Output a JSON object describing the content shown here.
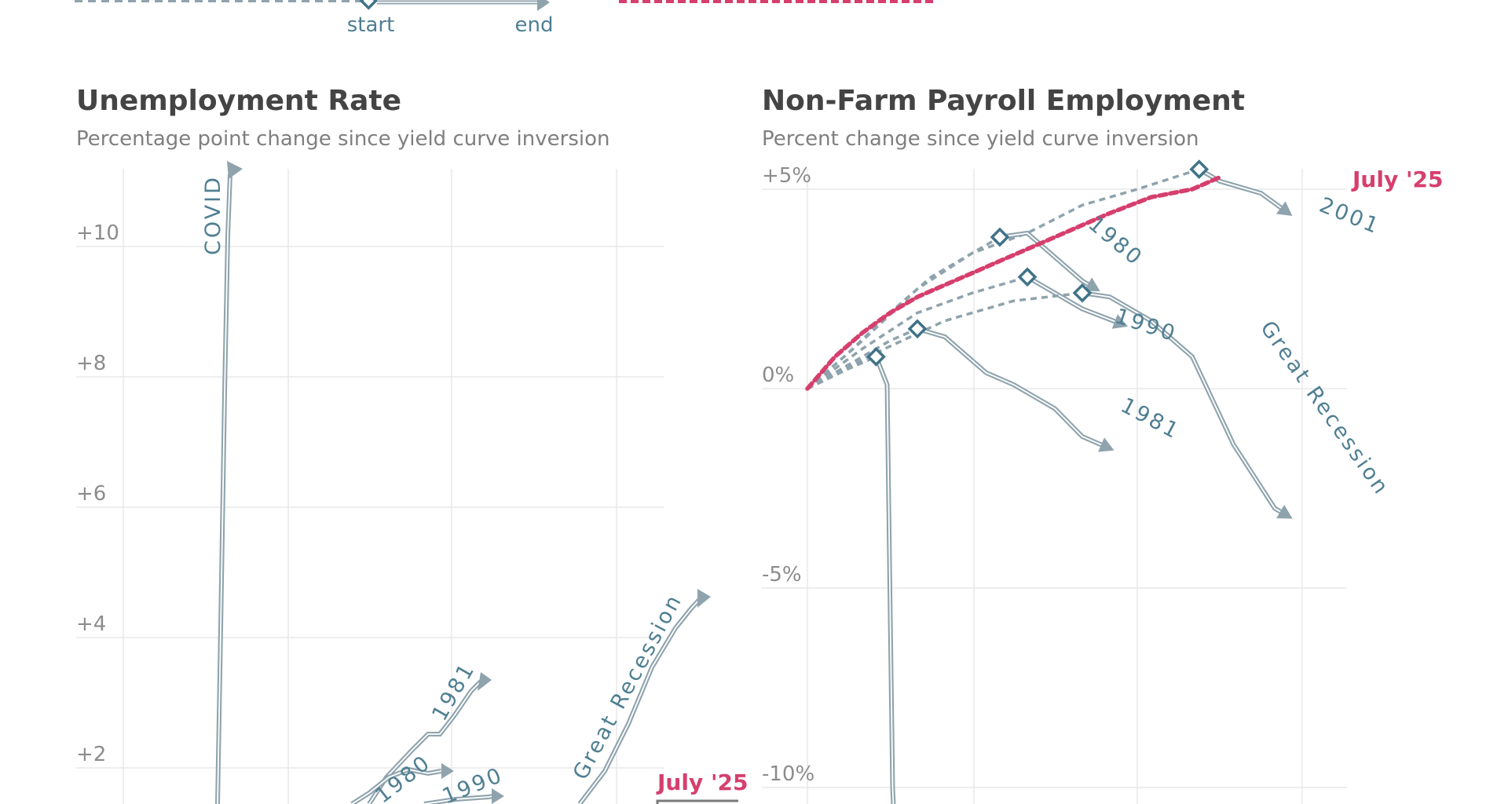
{
  "legend": {
    "start_label": "start",
    "end_label": "end",
    "colors": {
      "past": "#8fa3ad",
      "past_label": "#4f7f92",
      "current": "#d63f6d",
      "grid": "#e8e8e8"
    }
  },
  "chart_data": [
    {
      "type": "line",
      "title": "Unemployment Rate",
      "subtitle": "Percentage point change since yield curve inversion",
      "y_ticks": [
        "+10",
        "+8",
        "+6",
        "+4",
        "+2"
      ],
      "y_tick_values": [
        10,
        8,
        6,
        4,
        2
      ],
      "ylim": [
        1.4,
        11.2
      ],
      "grid": true,
      "series": [
        {
          "name": "COVID",
          "points": [
            [
              0.6,
              0
            ],
            [
              0.65,
              2
            ],
            [
              0.7,
              6
            ],
            [
              0.75,
              10
            ],
            [
              0.8,
              11.2
            ]
          ]
        },
        {
          "name": "1981",
          "points": [
            [
              1.6,
              1.0
            ],
            [
              2.0,
              1.5
            ],
            [
              2.4,
              1.9
            ],
            [
              2.6,
              2.3
            ],
            [
              2.9,
              2.7
            ],
            [
              3.2,
              3.3
            ]
          ]
        },
        {
          "name": "1980",
          "points": [
            [
              1.5,
              0.8
            ],
            [
              1.8,
              1.2
            ],
            [
              2.0,
              1.5
            ],
            [
              2.3,
              1.7
            ],
            [
              2.6,
              1.7
            ],
            [
              2.8,
              1.8
            ]
          ]
        },
        {
          "name": "1990",
          "points": [
            [
              1.6,
              0.6
            ],
            [
              2.0,
              0.9
            ],
            [
              2.5,
              1.1
            ],
            [
              3.0,
              1.3
            ]
          ]
        },
        {
          "name": "Great Recession",
          "points": [
            [
              2.6,
              0
            ],
            [
              3.0,
              1.0
            ],
            [
              3.5,
              2.5
            ],
            [
              4.0,
              3.7
            ],
            [
              4.3,
              4.2
            ],
            [
              4.6,
              4.6
            ]
          ]
        },
        {
          "name": "July '25",
          "points": [
            [
              4.4,
              1.0
            ],
            [
              4.8,
              1.0
            ]
          ]
        }
      ],
      "labels": [
        "COVID",
        "1981",
        "1980",
        "1990",
        "Great Recession",
        "July '25"
      ]
    },
    {
      "type": "line",
      "title": "Non-Farm Payroll Employment",
      "subtitle": "Percent change since yield curve inversion",
      "y_ticks": [
        "+5%",
        "0%",
        "-5%",
        "-10%"
      ],
      "y_tick_values": [
        5,
        0,
        -5,
        -10
      ],
      "ylim": [
        -10.8,
        5.5
      ],
      "grid": true,
      "series": [
        {
          "name": "2001",
          "start": [
            28.5,
            5.5
          ],
          "points": [
            [
              0,
              0
            ],
            [
              4,
              1.2
            ],
            [
              8,
              2.5
            ],
            [
              12,
              3.4
            ],
            [
              16,
              3.9
            ],
            [
              20,
              4.6
            ],
            [
              24,
              5.0
            ],
            [
              28.5,
              5.5
            ],
            [
              30,
              5.2
            ],
            [
              33,
              4.9
            ],
            [
              35,
              4.4
            ]
          ]
        },
        {
          "name": "1980",
          "start": [
            14,
            3.8
          ],
          "points": [
            [
              0,
              0
            ],
            [
              3,
              0.9
            ],
            [
              6,
              1.9
            ],
            [
              9,
              2.8
            ],
            [
              12,
              3.4
            ],
            [
              14,
              3.8
            ],
            [
              16,
              3.9
            ],
            [
              18,
              3.3
            ],
            [
              20,
              2.7
            ],
            [
              21,
              2.5
            ]
          ]
        },
        {
          "name": "1990",
          "start": [
            16,
            2.8
          ],
          "points": [
            [
              0,
              0
            ],
            [
              4,
              1.0
            ],
            [
              8,
              1.9
            ],
            [
              12,
              2.4
            ],
            [
              16,
              2.8
            ],
            [
              18,
              2.4
            ],
            [
              20,
              2.0
            ],
            [
              23,
              1.6
            ]
          ]
        },
        {
          "name": "Great Recession",
          "start": [
            20,
            2.4
          ],
          "points": [
            [
              0,
              0
            ],
            [
              5,
              0.9
            ],
            [
              10,
              1.7
            ],
            [
              15,
              2.2
            ],
            [
              20,
              2.4
            ],
            [
              22,
              2.3
            ],
            [
              25,
              1.7
            ],
            [
              28,
              0.8
            ],
            [
              31,
              -1.4
            ],
            [
              34,
              -3.0
            ],
            [
              35,
              -3.2
            ]
          ]
        },
        {
          "name": "1981",
          "start": [
            8,
            1.5
          ],
          "points": [
            [
              0,
              0
            ],
            [
              3,
              0.6
            ],
            [
              6,
              1.2
            ],
            [
              8,
              1.5
            ],
            [
              10,
              1.3
            ],
            [
              13,
              0.4
            ],
            [
              15,
              0.1
            ],
            [
              18,
              -0.5
            ],
            [
              20,
              -1.2
            ],
            [
              22,
              -1.5
            ]
          ]
        },
        {
          "name": "COVID",
          "start": [
            5,
            0.8
          ],
          "points": [
            [
              0,
              0
            ],
            [
              3,
              0.5
            ],
            [
              5,
              0.8
            ],
            [
              5.8,
              0.1
            ],
            [
              6.0,
              -5
            ],
            [
              6.2,
              -10
            ],
            [
              6.3,
              -10.8
            ]
          ]
        },
        {
          "name": "July '25",
          "points": [
            [
              0,
              0
            ],
            [
              2,
              0.8
            ],
            [
              4,
              1.4
            ],
            [
              6,
              1.9
            ],
            [
              8,
              2.3
            ],
            [
              10,
              2.6
            ],
            [
              12,
              2.9
            ],
            [
              14,
              3.2
            ],
            [
              16,
              3.5
            ],
            [
              18,
              3.8
            ],
            [
              20,
              4.1
            ],
            [
              22,
              4.4
            ],
            [
              25,
              4.8
            ],
            [
              28,
              5.0
            ],
            [
              30,
              5.3
            ]
          ]
        }
      ],
      "labels": [
        "2001",
        "1980",
        "1990",
        "Great Recession",
        "1981",
        "July '25"
      ]
    }
  ]
}
